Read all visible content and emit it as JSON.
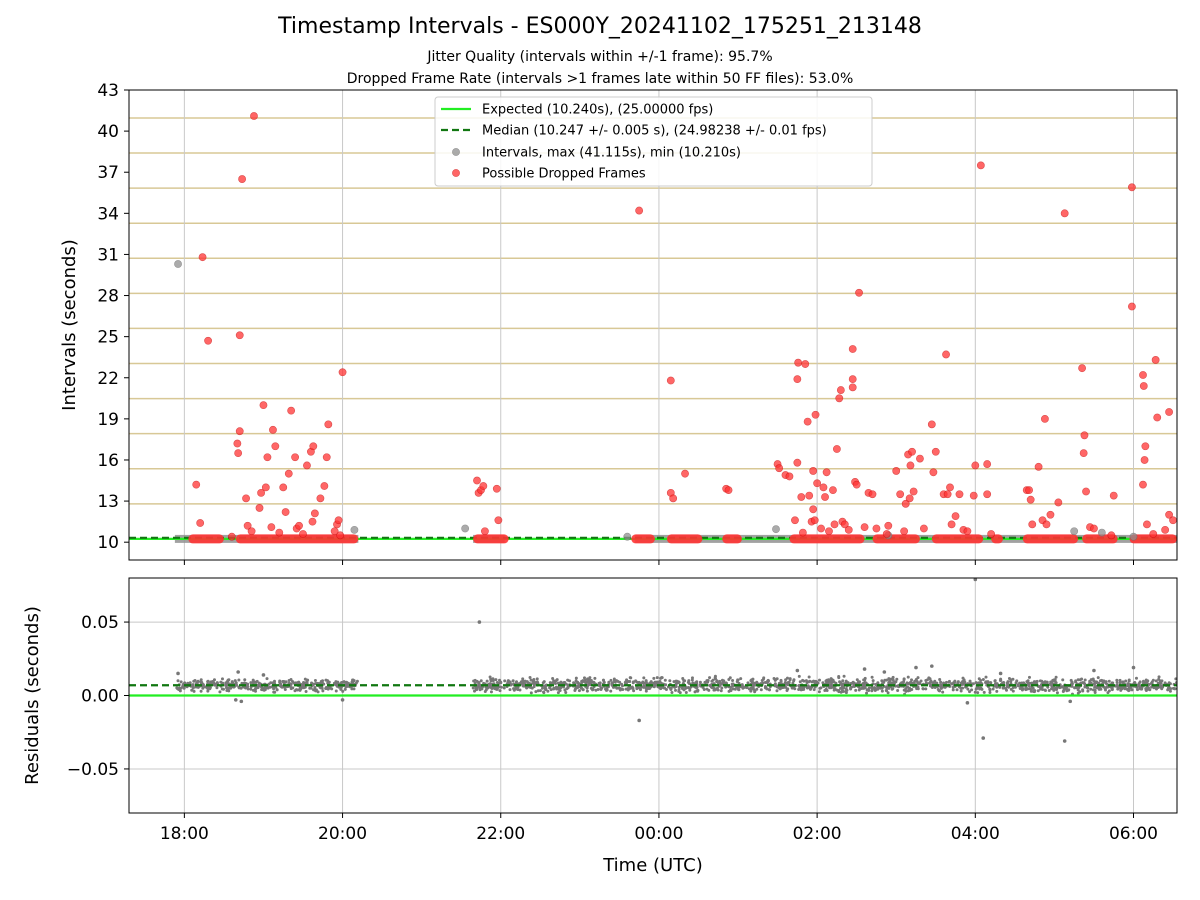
{
  "title": "Timestamp Intervals - ES000Y_20241102_175251_213148",
  "subtitle_1": "Jitter Quality (intervals within +/-1 frame): 95.7%",
  "subtitle_2": "Dropped Frame Rate (intervals >1 frames late within 50 FF files): 53.0%",
  "colors": {
    "expected": "#22ee22",
    "median": "#117711",
    "intervals": "#909090",
    "dropped": "#ff3333",
    "frame_lines": "#d8c896",
    "grid": "#c8c8c8",
    "residuals": "#777777"
  },
  "chart_data": [
    {
      "type": "scatter",
      "panel": "top",
      "ylabel": "Intervals (seconds)",
      "xlabel": "",
      "xlim_hours": [
        17.3,
        30.55
      ],
      "ylim": [
        8.7,
        43
      ],
      "x_ticks": [
        "18:00",
        "20:00",
        "22:00",
        "00:00",
        "02:00",
        "04:00",
        "06:00"
      ],
      "y_ticks": [
        10,
        13,
        16,
        19,
        22,
        25,
        28,
        31,
        34,
        37,
        40,
        43
      ],
      "frame_lines": [
        10.24,
        12.8,
        15.36,
        17.92,
        20.48,
        23.04,
        25.6,
        28.16,
        30.72,
        33.28,
        35.84,
        38.4,
        40.96
      ],
      "legend_position": "upper center",
      "legend": [
        "Expected (10.240s), (25.00000 fps)",
        "Median (10.247 +/- 0.005 s), (24.98238 +/- 0.01 fps)",
        "Intervals, max (41.115s), min (10.210s)",
        "Possible Dropped Frames"
      ],
      "expected_value": 10.24,
      "median_value": 10.247,
      "baseline_segments": [
        [
          17.88,
          20.2
        ],
        [
          21.65,
          22.05
        ],
        [
          23.7,
          30.55
        ]
      ],
      "dropped_frame_bands": [
        [
          18.05,
          18.5
        ],
        [
          18.65,
          20.2
        ],
        [
          21.65,
          22.1
        ],
        [
          23.65,
          23.95
        ],
        [
          24.1,
          24.55
        ],
        [
          24.8,
          25.05
        ],
        [
          25.65,
          26.6
        ],
        [
          26.7,
          27.3
        ],
        [
          27.45,
          28.1
        ],
        [
          28.2,
          28.35
        ],
        [
          28.6,
          29.3
        ],
        [
          29.35,
          29.8
        ],
        [
          29.95,
          30.55
        ]
      ],
      "series": [
        {
          "name": "Intervals",
          "points": [
            [
              17.92,
              30.3
            ],
            [
              20.15,
              10.9
            ],
            [
              21.55,
              11.0
            ],
            [
              23.6,
              10.4
            ],
            [
              25.48,
              10.95
            ],
            [
              26.9,
              10.5
            ],
            [
              29.25,
              10.8
            ],
            [
              29.6,
              10.7
            ],
            [
              30.0,
              10.4
            ]
          ]
        },
        {
          "name": "Possible Dropped Frames",
          "points": [
            [
              18.15,
              14.2
            ],
            [
              18.23,
              30.8
            ],
            [
              18.2,
              11.4
            ],
            [
              18.3,
              24.7
            ],
            [
              18.7,
              25.1
            ],
            [
              18.73,
              36.5
            ],
            [
              18.88,
              41.1
            ],
            [
              18.67,
              17.2
            ],
            [
              18.7,
              18.1
            ],
            [
              18.68,
              16.5
            ],
            [
              18.78,
              13.2
            ],
            [
              18.8,
              11.2
            ],
            [
              18.85,
              10.8
            ],
            [
              18.95,
              12.5
            ],
            [
              18.97,
              13.6
            ],
            [
              19.03,
              14.0
            ],
            [
              19.0,
              20.0
            ],
            [
              19.05,
              16.2
            ],
            [
              19.1,
              11.1
            ],
            [
              19.12,
              18.2
            ],
            [
              19.15,
              17.0
            ],
            [
              19.2,
              10.7
            ],
            [
              19.25,
              14.0
            ],
            [
              19.28,
              12.2
            ],
            [
              19.32,
              15.0
            ],
            [
              19.35,
              19.6
            ],
            [
              19.4,
              16.2
            ],
            [
              19.42,
              11.0
            ],
            [
              19.45,
              11.2
            ],
            [
              19.5,
              10.6
            ],
            [
              19.55,
              15.6
            ],
            [
              19.6,
              16.6
            ],
            [
              19.62,
              11.5
            ],
            [
              19.65,
              12.1
            ],
            [
              19.63,
              17.0
            ],
            [
              19.72,
              13.2
            ],
            [
              19.77,
              14.1
            ],
            [
              19.8,
              16.2
            ],
            [
              19.82,
              18.6
            ],
            [
              19.9,
              10.8
            ],
            [
              19.93,
              11.3
            ],
            [
              19.95,
              11.6
            ],
            [
              20.0,
              22.4
            ],
            [
              19.97,
              10.5
            ],
            [
              18.6,
              10.4
            ],
            [
              21.7,
              14.5
            ],
            [
              21.72,
              13.6
            ],
            [
              21.75,
              13.8
            ],
            [
              21.78,
              14.1
            ],
            [
              21.8,
              10.8
            ],
            [
              21.95,
              13.9
            ],
            [
              21.97,
              11.6
            ],
            [
              23.75,
              34.2
            ],
            [
              24.15,
              21.8
            ],
            [
              24.15,
              13.6
            ],
            [
              24.18,
              13.2
            ],
            [
              24.33,
              15.0
            ],
            [
              24.85,
              13.9
            ],
            [
              24.88,
              13.8
            ],
            [
              25.5,
              15.7
            ],
            [
              25.52,
              15.4
            ],
            [
              25.6,
              14.9
            ],
            [
              25.65,
              14.8
            ],
            [
              25.72,
              11.6
            ],
            [
              25.75,
              21.9
            ],
            [
              25.76,
              23.1
            ],
            [
              25.75,
              15.8
            ],
            [
              25.8,
              13.3
            ],
            [
              25.82,
              10.7
            ],
            [
              25.85,
              23.0
            ],
            [
              25.88,
              18.8
            ],
            [
              25.9,
              13.4
            ],
            [
              25.93,
              11.5
            ],
            [
              25.95,
              15.2
            ],
            [
              25.95,
              12.4
            ],
            [
              25.97,
              11.6
            ],
            [
              25.98,
              19.3
            ],
            [
              26.0,
              14.3
            ],
            [
              26.05,
              11.0
            ],
            [
              26.08,
              14.0
            ],
            [
              26.1,
              13.3
            ],
            [
              26.12,
              15.1
            ],
            [
              26.15,
              10.8
            ],
            [
              26.2,
              13.8
            ],
            [
              26.22,
              11.3
            ],
            [
              26.25,
              16.8
            ],
            [
              26.28,
              20.5
            ],
            [
              26.3,
              21.1
            ],
            [
              26.32,
              11.5
            ],
            [
              26.35,
              11.3
            ],
            [
              26.4,
              10.9
            ],
            [
              26.45,
              24.1
            ],
            [
              26.45,
              21.3
            ],
            [
              26.45,
              21.9
            ],
            [
              26.48,
              14.4
            ],
            [
              26.5,
              14.2
            ],
            [
              26.53,
              28.2
            ],
            [
              26.6,
              11.1
            ],
            [
              26.65,
              13.6
            ],
            [
              26.7,
              13.5
            ],
            [
              26.75,
              11.0
            ],
            [
              26.88,
              10.6
            ],
            [
              26.9,
              11.2
            ],
            [
              27.0,
              15.2
            ],
            [
              27.05,
              13.5
            ],
            [
              27.1,
              10.8
            ],
            [
              27.12,
              12.8
            ],
            [
              27.15,
              16.4
            ],
            [
              27.17,
              13.2
            ],
            [
              27.2,
              16.6
            ],
            [
              27.22,
              13.7
            ],
            [
              27.18,
              15.6
            ],
            [
              27.3,
              16.1
            ],
            [
              27.35,
              11.0
            ],
            [
              27.45,
              18.6
            ],
            [
              27.47,
              15.1
            ],
            [
              27.5,
              16.6
            ],
            [
              27.6,
              13.5
            ],
            [
              27.63,
              23.7
            ],
            [
              27.65,
              13.5
            ],
            [
              27.68,
              14.0
            ],
            [
              27.7,
              11.3
            ],
            [
              27.75,
              11.9
            ],
            [
              27.8,
              13.5
            ],
            [
              27.85,
              10.9
            ],
            [
              27.9,
              10.8
            ],
            [
              27.98,
              13.4
            ],
            [
              28.0,
              15.6
            ],
            [
              28.07,
              37.5
            ],
            [
              28.15,
              13.5
            ],
            [
              28.15,
              15.7
            ],
            [
              28.2,
              10.6
            ],
            [
              28.65,
              13.8
            ],
            [
              28.68,
              13.8
            ],
            [
              28.7,
              13.1
            ],
            [
              28.72,
              11.3
            ],
            [
              28.8,
              15.5
            ],
            [
              28.85,
              11.6
            ],
            [
              28.88,
              19.0
            ],
            [
              28.9,
              11.3
            ],
            [
              28.95,
              12.0
            ],
            [
              29.05,
              12.9
            ],
            [
              29.13,
              34.0
            ],
            [
              29.35,
              22.7
            ],
            [
              29.37,
              16.5
            ],
            [
              29.38,
              17.8
            ],
            [
              29.4,
              13.7
            ],
            [
              29.45,
              11.1
            ],
            [
              29.5,
              11.0
            ],
            [
              29.75,
              13.4
            ],
            [
              29.72,
              10.5
            ],
            [
              29.98,
              35.9
            ],
            [
              29.98,
              27.2
            ],
            [
              30.12,
              22.2
            ],
            [
              30.13,
              21.4
            ],
            [
              30.12,
              14.2
            ],
            [
              30.15,
              17.0
            ],
            [
              30.17,
              11.3
            ],
            [
              30.14,
              16.0
            ],
            [
              30.28,
              23.3
            ],
            [
              30.3,
              19.1
            ],
            [
              30.45,
              19.5
            ],
            [
              30.45,
              12.0
            ],
            [
              30.5,
              11.6
            ],
            [
              30.25,
              10.6
            ],
            [
              30.4,
              10.9
            ]
          ]
        }
      ]
    },
    {
      "type": "scatter",
      "panel": "bottom",
      "ylabel": "Residuals (seconds)",
      "xlabel": "Time (UTC)",
      "xlim_hours": [
        17.3,
        30.55
      ],
      "ylim": [
        -0.08,
        0.08
      ],
      "x_ticks": [
        "18:00",
        "20:00",
        "22:00",
        "00:00",
        "02:00",
        "04:00",
        "06:00"
      ],
      "y_ticks": [
        "0.05",
        "0.00",
        "−0.05"
      ],
      "y_tick_values": [
        0.05,
        0.0,
        -0.05
      ],
      "expected_residual": 0.0,
      "median_residual": 0.007,
      "residual_bands": [
        {
          "from": 17.9,
          "to": 20.2,
          "center": 0.007,
          "spread": 0.004
        },
        {
          "from": 21.65,
          "to": 30.55,
          "center": 0.007,
          "spread": 0.005
        }
      ],
      "series": [
        {
          "name": "Residuals",
          "points": [
            [
              21.73,
              0.05
            ],
            [
              23.75,
              -0.017
            ],
            [
              28.0,
              0.079
            ],
            [
              28.1,
              -0.029
            ],
            [
              29.13,
              -0.031
            ],
            [
              18.72,
              -0.004
            ],
            [
              18.65,
              -0.003
            ],
            [
              19.0,
              0.014
            ],
            [
              17.92,
              0.015
            ],
            [
              18.68,
              0.016
            ],
            [
              26.85,
              0.016
            ],
            [
              27.25,
              0.019
            ],
            [
              27.45,
              0.02
            ],
            [
              30.0,
              0.019
            ],
            [
              29.5,
              0.017
            ],
            [
              26.6,
              0.018
            ],
            [
              25.75,
              0.017
            ],
            [
              28.32,
              0.015
            ],
            [
              27.9,
              -0.005
            ],
            [
              29.2,
              -0.004
            ],
            [
              20.0,
              -0.003
            ]
          ]
        }
      ]
    }
  ]
}
